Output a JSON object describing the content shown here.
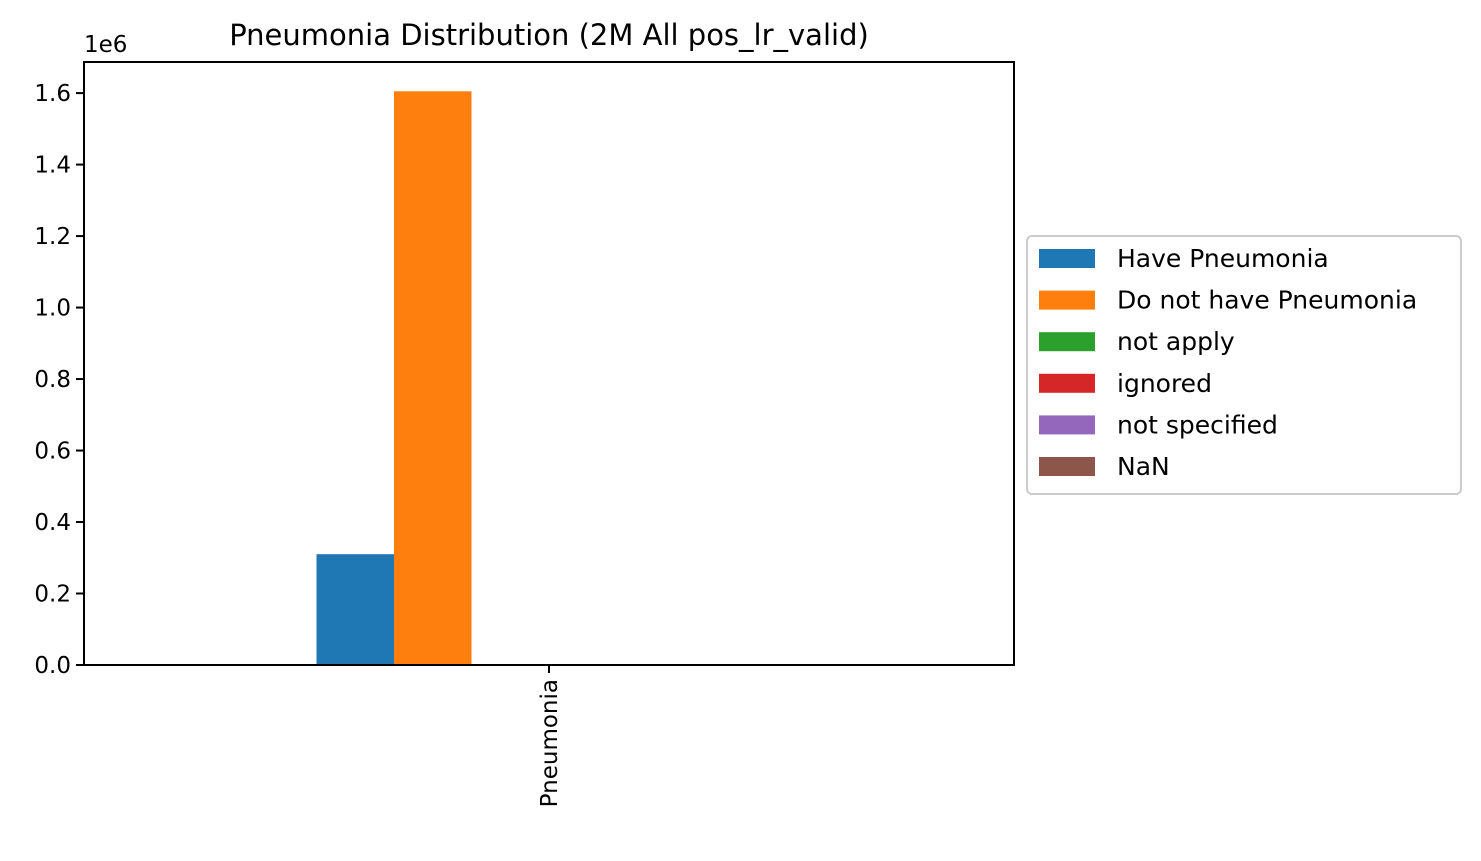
{
  "chart_data": {
    "type": "bar",
    "title": "Pneumonia Distribution (2M All pos_lr_valid)",
    "xlabel": "",
    "ylabel": "",
    "y_scale_label": "1e6",
    "y_multiplier": 1000000,
    "categories": [
      "Pneumonia"
    ],
    "series": [
      {
        "name": "Have Pneumonia",
        "values": [
          310000
        ],
        "color": "#1f77b4"
      },
      {
        "name": "Do not have Pneumonia",
        "values": [
          1605000
        ],
        "color": "#ff7f0e"
      },
      {
        "name": "not apply",
        "values": [
          0
        ],
        "color": "#2ca02c"
      },
      {
        "name": "ignored",
        "values": [
          0
        ],
        "color": "#d62728"
      },
      {
        "name": "not specified",
        "values": [
          0
        ],
        "color": "#9467bd"
      },
      {
        "name": "NaN",
        "values": [
          0
        ],
        "color": "#8c564b"
      }
    ],
    "ylim": [
      0,
      1687000
    ],
    "yticks": [
      0,
      200000,
      400000,
      600000,
      800000,
      1000000,
      1200000,
      1400000,
      1600000
    ],
    "ytick_labels": [
      "0.0",
      "0.2",
      "0.4",
      "0.6",
      "0.8",
      "1.0",
      "1.2",
      "1.4",
      "1.6"
    ],
    "grid": false,
    "legend_position": "center-right outside"
  }
}
